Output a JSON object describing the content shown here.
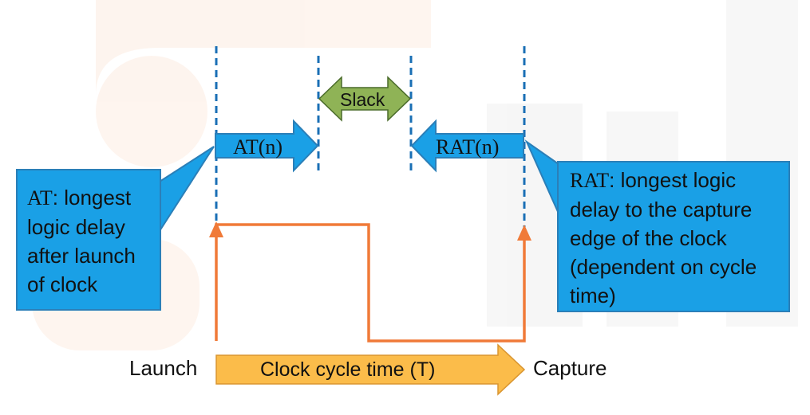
{
  "at_callout": {
    "abbr": "AT",
    "text": ": longest logic delay after launch of clock"
  },
  "rat_callout": {
    "abbr": "RAT",
    "text": ": longest logic delay to the capture edge of the clock (dependent on cycle time)"
  },
  "arrows": {
    "at_label": "AT(n)",
    "rat_label": "RAT(n)",
    "slack_label": "Slack"
  },
  "clock": {
    "launch_label": "Launch",
    "capture_label": "Capture",
    "cycle_label": "Clock cycle time (T)"
  },
  "colors": {
    "callout_fill": "#1aa0e6",
    "callout_border": "#2b7fb8",
    "slack_fill": "#8fb356",
    "clock_wave": "#f07a38",
    "cycle_arrow_fill": "#fbbc4a",
    "dashed_line": "#1a6fb5"
  }
}
